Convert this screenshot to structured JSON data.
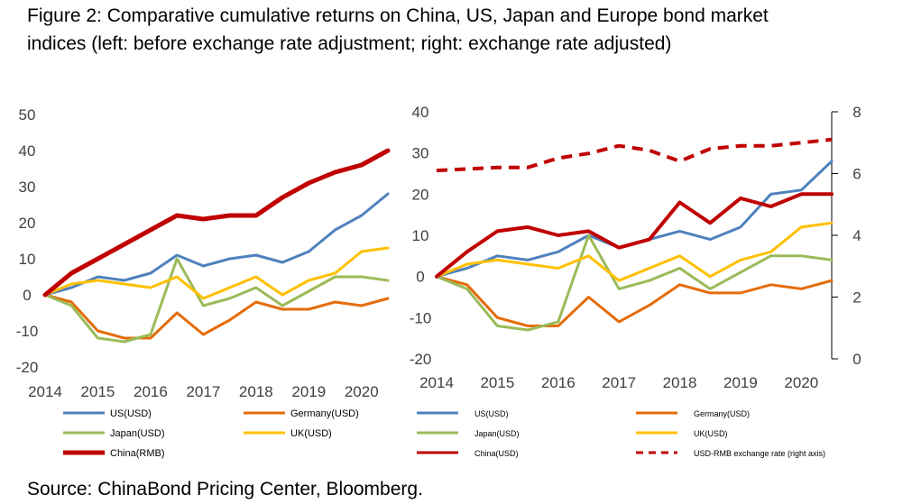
{
  "figure": {
    "title": "Figure 2: Comparative cumulative returns on China, US, Japan and Europe bond market indices (left: before exchange rate adjustment; right: exchange rate adjusted)",
    "source": "Source: ChinaBond Pricing Center, Bloomberg."
  },
  "colors": {
    "US": "#4f81bd",
    "Germany": "#e46c0a",
    "Japan": "#9bbb59",
    "UK": "#ffc000",
    "China": "#c00000"
  },
  "chart_data": [
    {
      "type": "line",
      "panel": "left",
      "x": [
        2014.0,
        2014.5,
        2015.0,
        2015.5,
        2016.0,
        2016.5,
        2017.0,
        2017.5,
        2018.0,
        2018.5,
        2019.0,
        2019.5,
        2020.0,
        2020.5
      ],
      "xticks": [
        "2014",
        "2015",
        "2016",
        "2017",
        "2018",
        "2019",
        "2020"
      ],
      "ylim": [
        -20,
        50
      ],
      "yticks": [
        -20,
        -10,
        0,
        10,
        20,
        30,
        40,
        50
      ],
      "series": [
        {
          "name": "US(USD)",
          "color": "#4f81bd",
          "values": [
            0,
            2,
            5,
            4,
            6,
            11,
            8,
            10,
            11,
            9,
            12,
            18,
            22,
            28
          ]
        },
        {
          "name": "Germany(USD)",
          "color": "#e46c0a",
          "values": [
            0,
            -2,
            -10,
            -12,
            -12,
            -5,
            -11,
            -7,
            -2,
            -4,
            -4,
            -2,
            -3,
            -1
          ]
        },
        {
          "name": "Japan(USD)",
          "color": "#9bbb59",
          "values": [
            0,
            -3,
            -12,
            -13,
            -11,
            10,
            -3,
            -1,
            2,
            -3,
            1,
            5,
            5,
            4
          ]
        },
        {
          "name": "UK(USD)",
          "color": "#ffc000",
          "values": [
            0,
            3,
            4,
            3,
            2,
            5,
            -1,
            2,
            5,
            0,
            4,
            6,
            12,
            13
          ]
        },
        {
          "name": "China(RMB)",
          "color": "#c00000",
          "values": [
            0,
            6,
            10,
            14,
            18,
            22,
            21,
            22,
            22,
            27,
            31,
            34,
            36,
            40
          ]
        }
      ]
    },
    {
      "type": "line",
      "panel": "right",
      "x": [
        2014.0,
        2014.5,
        2015.0,
        2015.5,
        2016.0,
        2016.5,
        2017.0,
        2017.5,
        2018.0,
        2018.5,
        2019.0,
        2019.5,
        2020.0,
        2020.5
      ],
      "xticks": [
        "2014",
        "2015",
        "2016",
        "2017",
        "2018",
        "2019",
        "2020"
      ],
      "ylim": [
        -20,
        40
      ],
      "yticks": [
        -20,
        -10,
        0,
        10,
        20,
        30,
        40
      ],
      "y2lim": [
        0,
        8
      ],
      "y2ticks": [
        0,
        2,
        4,
        6,
        8
      ],
      "series": [
        {
          "name": "US(USD)",
          "color": "#4f81bd",
          "values": [
            0,
            2,
            5,
            4,
            6,
            10,
            7,
            9,
            11,
            9,
            12,
            20,
            21,
            28
          ]
        },
        {
          "name": "Germany(USD)",
          "color": "#e46c0a",
          "values": [
            0,
            -2,
            -10,
            -12,
            -12,
            -5,
            -11,
            -7,
            -2,
            -4,
            -4,
            -2,
            -3,
            -1
          ]
        },
        {
          "name": "Japan(USD)",
          "color": "#9bbb59",
          "values": [
            0,
            -3,
            -12,
            -13,
            -11,
            10,
            -3,
            -1,
            2,
            -3,
            1,
            5,
            5,
            4
          ]
        },
        {
          "name": "UK(USD)",
          "color": "#ffc000",
          "values": [
            0,
            3,
            4,
            3,
            2,
            5,
            -1,
            2,
            5,
            0,
            4,
            6,
            12,
            13
          ]
        },
        {
          "name": "China(USD)",
          "color": "#c00000",
          "values": [
            0,
            6,
            11,
            12,
            10,
            11,
            7,
            9,
            18,
            13,
            19,
            17,
            20,
            20
          ]
        },
        {
          "name": "USD-RMB exchange rate (right axis)",
          "color": "#c00000",
          "dashed": true,
          "axis": "right",
          "values": [
            6.1,
            6.15,
            6.2,
            6.2,
            6.5,
            6.65,
            6.9,
            6.75,
            6.4,
            6.8,
            6.9,
            6.9,
            7.0,
            7.1
          ]
        }
      ]
    }
  ]
}
